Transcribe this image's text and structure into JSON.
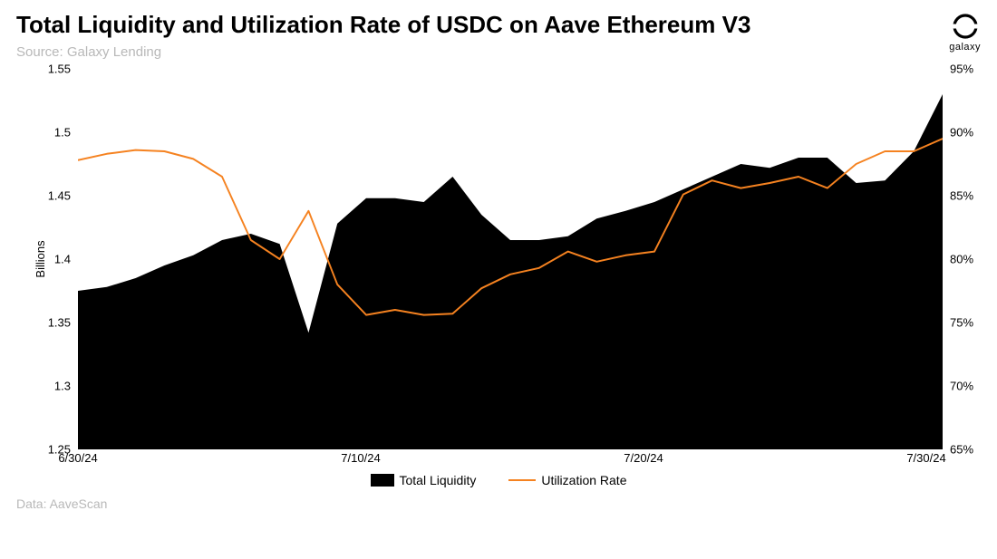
{
  "header": {
    "title": "Total Liquidity and Utilization Rate of USDC on Aave Ethereum V3",
    "source": "Source: Galaxy Lending",
    "logo_label": "galaxy"
  },
  "footer": {
    "text": "Data: AaveScan"
  },
  "legend": {
    "area_label": "Total Liquidity",
    "line_label": "Utilization Rate"
  },
  "chart": {
    "type": "area+line",
    "background_color": "#ffffff",
    "area_color": "#000000",
    "line_color": "#f58220",
    "line_width": 2,
    "left_axis": {
      "label": "Billions",
      "min": 1.25,
      "max": 1.55,
      "ticks": [
        1.25,
        1.3,
        1.35,
        1.4,
        1.45,
        1.5,
        1.55
      ],
      "tick_labels": [
        "1.25",
        "1.3",
        "1.35",
        "1.4",
        "1.45",
        "1.5",
        "1.55"
      ],
      "fontsize": 13
    },
    "right_axis": {
      "min": 65,
      "max": 95,
      "ticks": [
        65,
        70,
        75,
        80,
        85,
        90,
        95
      ],
      "tick_labels": [
        "65%",
        "70%",
        "75%",
        "80%",
        "85%",
        "90%",
        "95%"
      ],
      "fontsize": 13
    },
    "x_axis": {
      "min": 0,
      "max": 30,
      "ticks": [
        0,
        10,
        20,
        30
      ],
      "tick_labels": [
        "6/30/24",
        "7/10/24",
        "7/20/24",
        "7/30/24"
      ],
      "fontsize": 13
    },
    "series_area": {
      "name": "Total Liquidity",
      "x": [
        0,
        1,
        2,
        3,
        4,
        5,
        6,
        7,
        8,
        9,
        10,
        11,
        12,
        13,
        14,
        15,
        16,
        17,
        18,
        19,
        20,
        21,
        22,
        23,
        24,
        25,
        26,
        27,
        28,
        29,
        30
      ],
      "y": [
        1.375,
        1.378,
        1.385,
        1.395,
        1.403,
        1.415,
        1.42,
        1.412,
        1.342,
        1.428,
        1.448,
        1.448,
        1.445,
        1.465,
        1.435,
        1.415,
        1.415,
        1.418,
        1.432,
        1.438,
        1.445,
        1.455,
        1.465,
        1.475,
        1.472,
        1.48,
        1.48,
        1.46,
        1.462,
        1.485,
        1.53
      ]
    },
    "series_line": {
      "name": "Utilization Rate",
      "x": [
        0,
        1,
        2,
        3,
        4,
        5,
        6,
        7,
        8,
        9,
        10,
        11,
        12,
        13,
        14,
        15,
        16,
        17,
        18,
        19,
        20,
        21,
        22,
        23,
        24,
        25,
        26,
        27,
        28,
        29,
        30
      ],
      "y": [
        87.8,
        88.3,
        88.6,
        88.5,
        87.9,
        86.5,
        81.5,
        80.0,
        83.8,
        78.0,
        75.6,
        76.0,
        75.6,
        75.7,
        77.7,
        78.8,
        79.3,
        80.6,
        79.8,
        80.3,
        80.6,
        85.1,
        86.2,
        85.6,
        86.0,
        86.5,
        85.6,
        87.5,
        88.5,
        88.5,
        89.5
      ]
    }
  }
}
